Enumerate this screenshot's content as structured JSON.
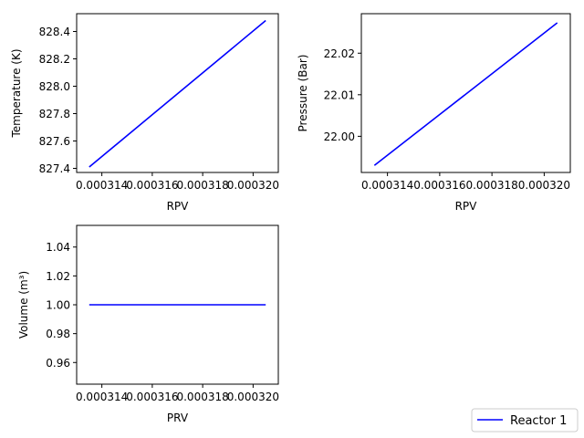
{
  "chart_data": [
    {
      "type": "line",
      "title": "",
      "xlabel": "RPV",
      "ylabel": "Temperature (K)",
      "xlim": [
        0.000313,
        0.000321
      ],
      "ylim": [
        827.37,
        828.53
      ],
      "xticks": [
        {
          "value": 0.000314,
          "label": "0.000314"
        },
        {
          "value": 0.000316,
          "label": "0.000316"
        },
        {
          "value": 0.000318,
          "label": "0.000318"
        },
        {
          "value": 0.00032,
          "label": "0.000320"
        }
      ],
      "yticks": [
        {
          "value": 827.4,
          "label": "827.4"
        },
        {
          "value": 827.6,
          "label": "827.6"
        },
        {
          "value": 827.8,
          "label": "827.8"
        },
        {
          "value": 828.0,
          "label": "828.0"
        },
        {
          "value": 828.2,
          "label": "828.2"
        },
        {
          "value": 828.4,
          "label": "828.4"
        }
      ],
      "grid": false,
      "series": [
        {
          "name": "Reactor 1",
          "color": "#0000ff",
          "x": [
            0.0003135,
            0.0003205
          ],
          "y": [
            827.41,
            828.48
          ]
        }
      ]
    },
    {
      "type": "line",
      "title": "",
      "xlabel": "RPV",
      "ylabel": "Pressure (Bar)",
      "xlim": [
        0.000313,
        0.000321
      ],
      "ylim": [
        21.9913,
        22.0295
      ],
      "xticks": [
        {
          "value": 0.000314,
          "label": "0.000314"
        },
        {
          "value": 0.000316,
          "label": "0.000316"
        },
        {
          "value": 0.000318,
          "label": "0.000318"
        },
        {
          "value": 0.00032,
          "label": "0.000320"
        }
      ],
      "yticks": [
        {
          "value": 22.0,
          "label": "22.00"
        },
        {
          "value": 22.01,
          "label": "22.01"
        },
        {
          "value": 22.02,
          "label": "22.02"
        }
      ],
      "grid": false,
      "series": [
        {
          "name": "Reactor 1",
          "color": "#0000ff",
          "x": [
            0.0003135,
            0.0003205
          ],
          "y": [
            21.993,
            22.0273
          ]
        }
      ]
    },
    {
      "type": "line",
      "title": "",
      "xlabel": "PRV",
      "ylabel": "Volume (m³)",
      "xlim": [
        0.000313,
        0.000321
      ],
      "ylim": [
        0.945,
        1.055
      ],
      "xticks": [
        {
          "value": 0.000314,
          "label": "0.000314"
        },
        {
          "value": 0.000316,
          "label": "0.000316"
        },
        {
          "value": 0.000318,
          "label": "0.000318"
        },
        {
          "value": 0.00032,
          "label": "0.000320"
        }
      ],
      "yticks": [
        {
          "value": 0.96,
          "label": "0.96"
        },
        {
          "value": 0.98,
          "label": "0.98"
        },
        {
          "value": 1.0,
          "label": "1.00"
        },
        {
          "value": 1.02,
          "label": "1.02"
        },
        {
          "value": 1.04,
          "label": "1.04"
        }
      ],
      "grid": false,
      "series": [
        {
          "name": "Reactor 1",
          "color": "#0000ff",
          "x": [
            0.0003135,
            0.0003205
          ],
          "y": [
            1.0,
            1.0
          ]
        }
      ]
    }
  ],
  "legend": {
    "placement": "bottom-right",
    "entries": [
      {
        "label": "Reactor 1",
        "color": "#0000ff"
      }
    ]
  }
}
